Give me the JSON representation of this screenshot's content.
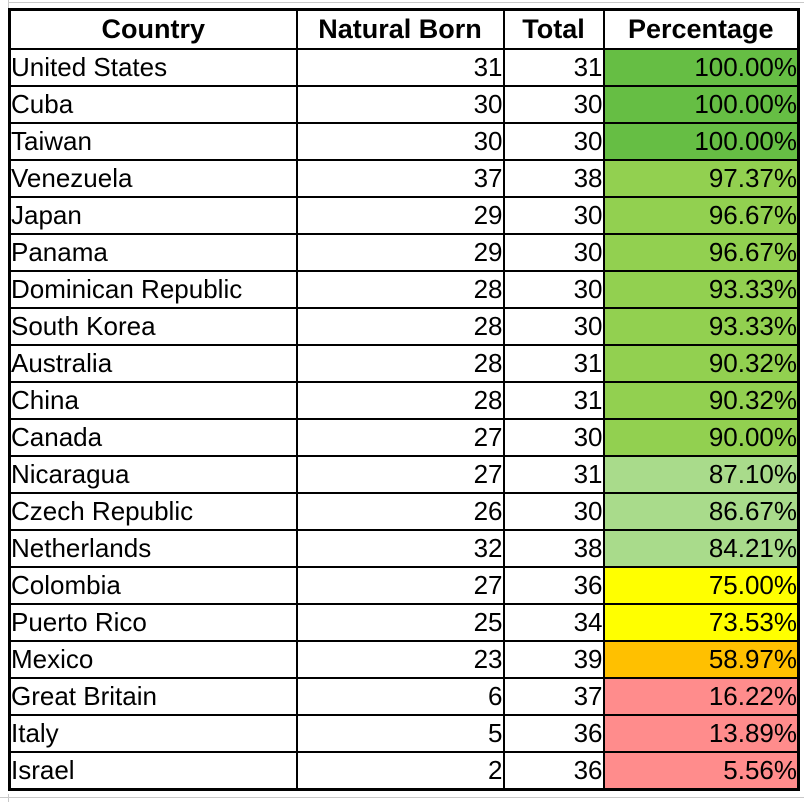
{
  "table": {
    "columns": [
      "Country",
      "Natural Born",
      "Total",
      "Percentage"
    ],
    "tier_colors": {
      "green-dark": "#66BE44",
      "green": "#92D050",
      "green-light": "#A9DB8B",
      "yellow": "#FFFF00",
      "orange": "#FFC000",
      "red": "#FF8C8C"
    },
    "rows": [
      {
        "country": "United States",
        "natural_born": "31",
        "total": "31",
        "percentage": "100.00%",
        "tier": "green-dark"
      },
      {
        "country": "Cuba",
        "natural_born": "30",
        "total": "30",
        "percentage": "100.00%",
        "tier": "green-dark"
      },
      {
        "country": "Taiwan",
        "natural_born": "30",
        "total": "30",
        "percentage": "100.00%",
        "tier": "green-dark"
      },
      {
        "country": "Venezuela",
        "natural_born": "37",
        "total": "38",
        "percentage": "97.37%",
        "tier": "green"
      },
      {
        "country": "Japan",
        "natural_born": "29",
        "total": "30",
        "percentage": "96.67%",
        "tier": "green"
      },
      {
        "country": "Panama",
        "natural_born": "29",
        "total": "30",
        "percentage": "96.67%",
        "tier": "green"
      },
      {
        "country": "Dominican Republic",
        "natural_born": "28",
        "total": "30",
        "percentage": "93.33%",
        "tier": "green"
      },
      {
        "country": "South Korea",
        "natural_born": "28",
        "total": "30",
        "percentage": "93.33%",
        "tier": "green"
      },
      {
        "country": "Australia",
        "natural_born": "28",
        "total": "31",
        "percentage": "90.32%",
        "tier": "green"
      },
      {
        "country": "China",
        "natural_born": "28",
        "total": "31",
        "percentage": "90.32%",
        "tier": "green"
      },
      {
        "country": "Canada",
        "natural_born": "27",
        "total": "30",
        "percentage": "90.00%",
        "tier": "green"
      },
      {
        "country": "Nicaragua",
        "natural_born": "27",
        "total": "31",
        "percentage": "87.10%",
        "tier": "green-light"
      },
      {
        "country": "Czech Republic",
        "natural_born": "26",
        "total": "30",
        "percentage": "86.67%",
        "tier": "green-light"
      },
      {
        "country": "Netherlands",
        "natural_born": "32",
        "total": "38",
        "percentage": "84.21%",
        "tier": "green-light"
      },
      {
        "country": "Colombia",
        "natural_born": "27",
        "total": "36",
        "percentage": "75.00%",
        "tier": "yellow"
      },
      {
        "country": "Puerto Rico",
        "natural_born": "25",
        "total": "34",
        "percentage": "73.53%",
        "tier": "yellow"
      },
      {
        "country": "Mexico",
        "natural_born": "23",
        "total": "39",
        "percentage": "58.97%",
        "tier": "orange"
      },
      {
        "country": "Great Britain",
        "natural_born": "6",
        "total": "37",
        "percentage": "16.22%",
        "tier": "red"
      },
      {
        "country": "Italy",
        "natural_born": "5",
        "total": "36",
        "percentage": "13.89%",
        "tier": "red"
      },
      {
        "country": "Israel",
        "natural_born": "2",
        "total": "36",
        "percentage": "5.56%",
        "tier": "red"
      }
    ]
  },
  "chart_data": {
    "type": "table",
    "title": "",
    "columns": [
      "Country",
      "Natural Born",
      "Total",
      "Percentage"
    ],
    "rows": [
      [
        "United States",
        31,
        31,
        "100.00%"
      ],
      [
        "Cuba",
        30,
        30,
        "100.00%"
      ],
      [
        "Taiwan",
        30,
        30,
        "100.00%"
      ],
      [
        "Venezuela",
        37,
        38,
        "97.37%"
      ],
      [
        "Japan",
        29,
        30,
        "96.67%"
      ],
      [
        "Panama",
        29,
        30,
        "96.67%"
      ],
      [
        "Dominican Republic",
        28,
        30,
        "93.33%"
      ],
      [
        "South Korea",
        28,
        30,
        "93.33%"
      ],
      [
        "Australia",
        28,
        31,
        "90.32%"
      ],
      [
        "China",
        28,
        31,
        "90.32%"
      ],
      [
        "Canada",
        27,
        30,
        "90.00%"
      ],
      [
        "Nicaragua",
        27,
        31,
        "87.10%"
      ],
      [
        "Czech Republic",
        26,
        30,
        "86.67%"
      ],
      [
        "Netherlands",
        32,
        38,
        "84.21%"
      ],
      [
        "Colombia",
        27,
        36,
        "75.00%"
      ],
      [
        "Puerto Rico",
        25,
        34,
        "73.53%"
      ],
      [
        "Mexico",
        23,
        39,
        "58.97%"
      ],
      [
        "Great Britain",
        6,
        37,
        "16.22%"
      ],
      [
        "Italy",
        5,
        36,
        "13.89%"
      ],
      [
        "Israel",
        2,
        36,
        "5.56%"
      ]
    ],
    "layout_hints": {
      "percentage_fill_scale": "green (high) to yellow/orange (mid) to red (low)",
      "borders": "black grid borders, thick outer border",
      "alignment": "country left, numbers right, header centered bold"
    }
  }
}
